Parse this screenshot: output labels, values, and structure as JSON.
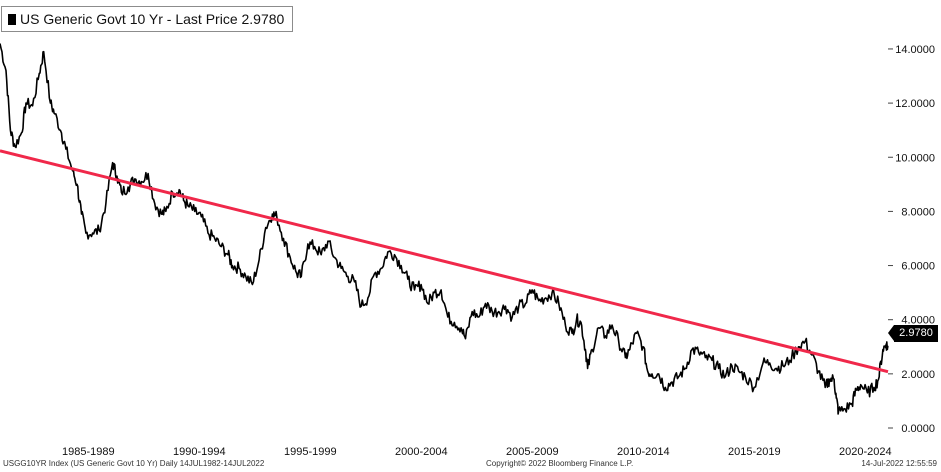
{
  "legend": {
    "label": "US Generic Govt 10 Yr - Last Price 2.9780",
    "swatch_color": "#000000"
  },
  "last_price_tag": "2.9780",
  "footer": {
    "left": "USGG10YR Index (US Generic Govt 10 Yr)  Daily 14JUL1982-14JUL2022",
    "center": "Copyright© 2022 Bloomberg Finance L.P.",
    "right": "14-Jul-2022 12:55:59"
  },
  "colors": {
    "series": "#000000",
    "trendline": "#f0284a",
    "background": "#ffffff"
  },
  "chart_data": {
    "type": "line",
    "title": "",
    "xlabel": "",
    "ylabel": "",
    "xlim": [
      1982.53,
      2022.53
    ],
    "ylim": [
      0,
      14.7
    ],
    "y_ticks": [
      "0.0000",
      "2.0000",
      "4.0000",
      "6.0000",
      "8.0000",
      "10.0000",
      "12.0000",
      "14.0000"
    ],
    "y_tick_values": [
      0,
      2,
      4,
      6,
      8,
      10,
      12,
      14
    ],
    "x_tick_labels": [
      "1985-1989",
      "1990-1994",
      "1995-1999",
      "2000-2004",
      "2005-2009",
      "2010-2014",
      "2015-2019",
      "2020-2024"
    ],
    "x_tick_centers": [
      1987.5,
      1992.5,
      1997.5,
      2002.5,
      2007.5,
      2012.5,
      2017.5,
      2022.5
    ],
    "y_axis_position": "right",
    "grid": false,
    "legend_position": "top-left",
    "last_value": 2.978,
    "series": [
      {
        "name": "US Generic Govt 10 Yr",
        "color": "#000000",
        "x": [
          1982.53,
          1982.8,
          1983.0,
          1983.2,
          1983.5,
          1983.7,
          1984.0,
          1984.3,
          1984.5,
          1984.8,
          1985.0,
          1985.3,
          1985.5,
          1985.8,
          1986.0,
          1986.2,
          1986.4,
          1986.7,
          1987.0,
          1987.3,
          1987.6,
          1987.8,
          1988.0,
          1988.3,
          1988.6,
          1988.9,
          1989.2,
          1989.5,
          1989.8,
          1990.0,
          1990.3,
          1990.6,
          1990.8,
          1991.0,
          1991.3,
          1991.6,
          1991.9,
          1992.2,
          1992.5,
          1992.8,
          1993.0,
          1993.3,
          1993.6,
          1993.9,
          1994.2,
          1994.5,
          1994.8,
          1995.0,
          1995.3,
          1995.6,
          1995.9,
          1996.1,
          1996.4,
          1996.7,
          1997.0,
          1997.3,
          1997.6,
          1997.9,
          1998.2,
          1998.5,
          1998.8,
          1999.1,
          1999.4,
          1999.7,
          2000.0,
          2000.3,
          2000.6,
          2000.9,
          2001.2,
          2001.5,
          2001.8,
          2002.1,
          2002.4,
          2002.7,
          2003.0,
          2003.3,
          2003.5,
          2003.8,
          2004.1,
          2004.4,
          2004.7,
          2005.0,
          2005.3,
          2005.6,
          2005.9,
          2006.2,
          2006.5,
          2006.8,
          2007.1,
          2007.4,
          2007.7,
          2008.0,
          2008.3,
          2008.5,
          2008.7,
          2008.9,
          2009.0,
          2009.2,
          2009.5,
          2009.8,
          2010.1,
          2010.4,
          2010.7,
          2010.9,
          2011.2,
          2011.5,
          2011.7,
          2011.9,
          2012.2,
          2012.5,
          2012.8,
          2013.1,
          2013.4,
          2013.7,
          2014.0,
          2014.3,
          2014.6,
          2014.9,
          2015.2,
          2015.5,
          2015.8,
          2016.1,
          2016.5,
          2016.9,
          2017.2,
          2017.5,
          2017.8,
          2018.1,
          2018.5,
          2018.8,
          2019.1,
          2019.4,
          2019.7,
          2019.9,
          2020.1,
          2020.2,
          2020.3,
          2020.6,
          2020.9,
          2021.1,
          2021.3,
          2021.6,
          2021.9,
          2022.1,
          2022.3,
          2022.45,
          2022.53
        ],
        "values": [
          14.2,
          13.2,
          11.0,
          10.4,
          10.9,
          12.0,
          11.9,
          13.1,
          13.9,
          12.0,
          11.6,
          10.9,
          10.3,
          9.5,
          9.0,
          7.9,
          7.2,
          7.2,
          7.3,
          8.3,
          9.8,
          9.3,
          8.7,
          8.9,
          9.2,
          9.1,
          9.4,
          8.3,
          7.9,
          8.0,
          8.7,
          8.8,
          8.4,
          8.2,
          8.0,
          7.8,
          7.2,
          7.0,
          6.7,
          6.4,
          6.0,
          5.9,
          5.6,
          5.3,
          6.2,
          7.4,
          7.9,
          7.8,
          7.0,
          6.3,
          5.7,
          5.6,
          6.8,
          6.7,
          6.4,
          6.9,
          6.3,
          5.9,
          5.6,
          5.4,
          4.5,
          4.8,
          5.7,
          5.9,
          6.5,
          6.4,
          6.0,
          5.5,
          5.1,
          5.3,
          4.6,
          5.0,
          5.1,
          4.1,
          3.9,
          3.7,
          3.3,
          4.3,
          4.1,
          4.6,
          4.3,
          4.3,
          4.5,
          4.1,
          4.5,
          4.6,
          5.1,
          4.7,
          4.8,
          5.0,
          4.6,
          3.8,
          3.5,
          4.0,
          3.9,
          2.9,
          2.2,
          2.9,
          3.7,
          3.4,
          3.8,
          3.2,
          2.6,
          2.9,
          3.5,
          3.0,
          2.1,
          2.0,
          2.0,
          1.5,
          1.7,
          1.9,
          2.2,
          2.9,
          2.8,
          2.6,
          2.5,
          2.2,
          1.9,
          2.3,
          2.1,
          1.9,
          1.5,
          2.4,
          2.4,
          2.2,
          2.3,
          2.5,
          3.0,
          3.2,
          2.7,
          2.1,
          1.5,
          1.8,
          1.8,
          1.1,
          0.6,
          0.7,
          0.9,
          1.4,
          1.6,
          1.3,
          1.5,
          1.8,
          2.9,
          3.1,
          2.978
        ]
      },
      {
        "name": "",
        "color": "#f0284a",
        "line_type": "trendline",
        "x": [
          1982.53,
          2022.53
        ],
        "values": [
          10.24,
          2.08
        ]
      }
    ]
  }
}
